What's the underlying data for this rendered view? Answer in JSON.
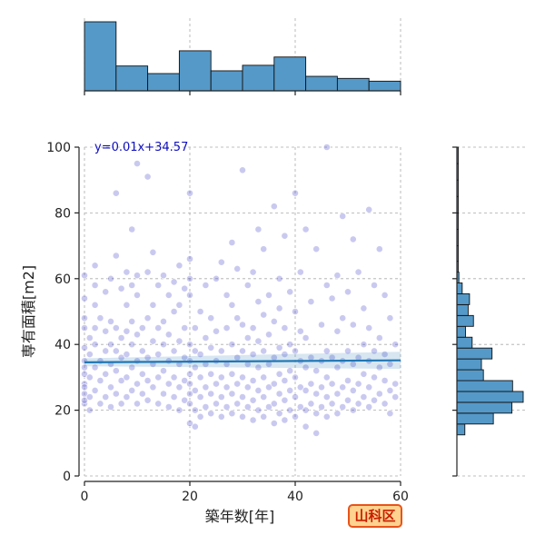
{
  "chart_data": {
    "type": "scatter",
    "xlabel": "築年数[年]",
    "ylabel": "専有面積[m2]",
    "xlim": [
      0,
      60
    ],
    "ylim": [
      0,
      100
    ],
    "xticks": [
      "0",
      "20",
      "40",
      "60"
    ],
    "yticks": [
      "0",
      "20",
      "40",
      "60",
      "80",
      "100"
    ],
    "grid": true,
    "annotation": "y=0.01x+34.57",
    "regression": {
      "slope": 0.01,
      "intercept": 34.57
    },
    "badge": "山科区",
    "colors": {
      "points": "#3d3dc8",
      "regression": "#1f77b4",
      "hist_fill": "#5599c8",
      "hist_edge": "#111111",
      "grid": "#aaaaaa",
      "badge_border": "#e8541a",
      "badge_fill": "#ffd28f",
      "badge_text": "#c81e00"
    },
    "x_histogram": {
      "bin_edges": [
        0,
        6,
        12,
        18,
        24,
        30,
        36,
        42,
        48,
        54,
        60
      ],
      "relative_heights": [
        1.0,
        0.36,
        0.25,
        0.58,
        0.29,
        0.37,
        0.49,
        0.21,
        0.18,
        0.14
      ]
    },
    "y_histogram": {
      "bin_edges": [
        12.5,
        15.8,
        19.1,
        22.4,
        25.7,
        29.0,
        32.3,
        35.6,
        38.9,
        42.2,
        45.5,
        48.8,
        52.1,
        55.4,
        58.7,
        62.0,
        65.3,
        70.0,
        75.0,
        80.0,
        85.0,
        90.0,
        95.0,
        100.0
      ],
      "relative_heights": [
        0.12,
        0.55,
        0.83,
        1.0,
        0.84,
        0.4,
        0.37,
        0.53,
        0.23,
        0.13,
        0.25,
        0.17,
        0.19,
        0.08,
        0.03,
        0.02,
        0.02,
        0.02,
        0.02,
        0.02,
        0.02,
        0.02,
        0.02
      ]
    },
    "points": [
      [
        0,
        22
      ],
      [
        0,
        25
      ],
      [
        0,
        28
      ],
      [
        0,
        31
      ],
      [
        0,
        35
      ],
      [
        0,
        39
      ],
      [
        0,
        45
      ],
      [
        0,
        48
      ],
      [
        0,
        54
      ],
      [
        0,
        61
      ],
      [
        0,
        23
      ],
      [
        0,
        27
      ],
      [
        0,
        33
      ],
      [
        1,
        24
      ],
      [
        1,
        30
      ],
      [
        1,
        37
      ],
      [
        1,
        42
      ],
      [
        1,
        20
      ],
      [
        2,
        26
      ],
      [
        2,
        33
      ],
      [
        2,
        40
      ],
      [
        2,
        45
      ],
      [
        2,
        52
      ],
      [
        2,
        58
      ],
      [
        2,
        64
      ],
      [
        3,
        22
      ],
      [
        3,
        29
      ],
      [
        3,
        35
      ],
      [
        3,
        48
      ],
      [
        4,
        24
      ],
      [
        4,
        31
      ],
      [
        4,
        38
      ],
      [
        4,
        44
      ],
      [
        4,
        56
      ],
      [
        5,
        21
      ],
      [
        5,
        27
      ],
      [
        5,
        34
      ],
      [
        5,
        40
      ],
      [
        5,
        47
      ],
      [
        5,
        60
      ],
      [
        6,
        25
      ],
      [
        6,
        32
      ],
      [
        6,
        38
      ],
      [
        6,
        45
      ],
      [
        6,
        67
      ],
      [
        6,
        86
      ],
      [
        7,
        22
      ],
      [
        7,
        29
      ],
      [
        7,
        36
      ],
      [
        7,
        42
      ],
      [
        7,
        57
      ],
      [
        8,
        24
      ],
      [
        8,
        30
      ],
      [
        8,
        37
      ],
      [
        8,
        44
      ],
      [
        8,
        52
      ],
      [
        8,
        62
      ],
      [
        9,
        26
      ],
      [
        9,
        33
      ],
      [
        9,
        40
      ],
      [
        9,
        47
      ],
      [
        9,
        58
      ],
      [
        9,
        75
      ],
      [
        10,
        22
      ],
      [
        10,
        28
      ],
      [
        10,
        35
      ],
      [
        10,
        43
      ],
      [
        10,
        55
      ],
      [
        10,
        61
      ],
      [
        10,
        95
      ],
      [
        11,
        25
      ],
      [
        11,
        31
      ],
      [
        11,
        38
      ],
      [
        11,
        45
      ],
      [
        12,
        23
      ],
      [
        12,
        29
      ],
      [
        12,
        36
      ],
      [
        12,
        48
      ],
      [
        12,
        62
      ],
      [
        12,
        91
      ],
      [
        13,
        27
      ],
      [
        13,
        34
      ],
      [
        13,
        41
      ],
      [
        13,
        52
      ],
      [
        13,
        68
      ],
      [
        14,
        22
      ],
      [
        14,
        30
      ],
      [
        14,
        37
      ],
      [
        14,
        45
      ],
      [
        14,
        58
      ],
      [
        15,
        25
      ],
      [
        15,
        32
      ],
      [
        15,
        40
      ],
      [
        15,
        47
      ],
      [
        15,
        61
      ],
      [
        16,
        21
      ],
      [
        16,
        28
      ],
      [
        16,
        35
      ],
      [
        16,
        43
      ],
      [
        16,
        55
      ],
      [
        17,
        24
      ],
      [
        17,
        30
      ],
      [
        17,
        38
      ],
      [
        17,
        50
      ],
      [
        17,
        59
      ],
      [
        18,
        20
      ],
      [
        18,
        27
      ],
      [
        18,
        34
      ],
      [
        18,
        41
      ],
      [
        18,
        52
      ],
      [
        18,
        64
      ],
      [
        19,
        23
      ],
      [
        19,
        29
      ],
      [
        19,
        36
      ],
      [
        19,
        45
      ],
      [
        19,
        57
      ],
      [
        20,
        16
      ],
      [
        20,
        22
      ],
      [
        20,
        28
      ],
      [
        20,
        35
      ],
      [
        20,
        40
      ],
      [
        20,
        55
      ],
      [
        20,
        60
      ],
      [
        20,
        66
      ],
      [
        20,
        86
      ],
      [
        20,
        31
      ],
      [
        20,
        25
      ],
      [
        21,
        15
      ],
      [
        21,
        20
      ],
      [
        21,
        26
      ],
      [
        21,
        33
      ],
      [
        21,
        38
      ],
      [
        21,
        45
      ],
      [
        22,
        18
      ],
      [
        22,
        24
      ],
      [
        22,
        30
      ],
      [
        22,
        37
      ],
      [
        22,
        50
      ],
      [
        23,
        21
      ],
      [
        23,
        27
      ],
      [
        23,
        34
      ],
      [
        23,
        42
      ],
      [
        23,
        58
      ],
      [
        24,
        19
      ],
      [
        24,
        25
      ],
      [
        24,
        31
      ],
      [
        24,
        39
      ],
      [
        24,
        48
      ],
      [
        25,
        22
      ],
      [
        25,
        28
      ],
      [
        25,
        35
      ],
      [
        25,
        44
      ],
      [
        25,
        60
      ],
      [
        26,
        18
      ],
      [
        26,
        24
      ],
      [
        26,
        30
      ],
      [
        26,
        38
      ],
      [
        26,
        65
      ],
      [
        27,
        21
      ],
      [
        27,
        27
      ],
      [
        27,
        34
      ],
      [
        27,
        45
      ],
      [
        27,
        55
      ],
      [
        28,
        19
      ],
      [
        28,
        25
      ],
      [
        28,
        31
      ],
      [
        28,
        40
      ],
      [
        28,
        52
      ],
      [
        28,
        71
      ],
      [
        29,
        22
      ],
      [
        29,
        28
      ],
      [
        29,
        36
      ],
      [
        29,
        48
      ],
      [
        29,
        63
      ],
      [
        30,
        18
      ],
      [
        30,
        24
      ],
      [
        30,
        30
      ],
      [
        30,
        38
      ],
      [
        30,
        46
      ],
      [
        30,
        93
      ],
      [
        31,
        21
      ],
      [
        31,
        27
      ],
      [
        31,
        34
      ],
      [
        31,
        42
      ],
      [
        31,
        58
      ],
      [
        32,
        17
      ],
      [
        32,
        23
      ],
      [
        32,
        29
      ],
      [
        32,
        37
      ],
      [
        32,
        45
      ],
      [
        32,
        62
      ],
      [
        33,
        20
      ],
      [
        33,
        26
      ],
      [
        33,
        33
      ],
      [
        33,
        41
      ],
      [
        33,
        53
      ],
      [
        33,
        75
      ],
      [
        34,
        18
      ],
      [
        34,
        24
      ],
      [
        34,
        30
      ],
      [
        34,
        38
      ],
      [
        34,
        49
      ],
      [
        34,
        69
      ],
      [
        35,
        21
      ],
      [
        35,
        27
      ],
      [
        35,
        34
      ],
      [
        35,
        43
      ],
      [
        35,
        55
      ],
      [
        36,
        16
      ],
      [
        36,
        22
      ],
      [
        36,
        28
      ],
      [
        36,
        36
      ],
      [
        36,
        47
      ],
      [
        36,
        82
      ],
      [
        37,
        19
      ],
      [
        37,
        25
      ],
      [
        37,
        31
      ],
      [
        37,
        39
      ],
      [
        37,
        51
      ],
      [
        37,
        60
      ],
      [
        38,
        17
      ],
      [
        38,
        23
      ],
      [
        38,
        29
      ],
      [
        38,
        37
      ],
      [
        38,
        45
      ],
      [
        38,
        73
      ],
      [
        39,
        20
      ],
      [
        39,
        26
      ],
      [
        39,
        32
      ],
      [
        39,
        40
      ],
      [
        39,
        56
      ],
      [
        40,
        18
      ],
      [
        40,
        24
      ],
      [
        40,
        30
      ],
      [
        40,
        38
      ],
      [
        40,
        50
      ],
      [
        40,
        86
      ],
      [
        41,
        21
      ],
      [
        41,
        27
      ],
      [
        41,
        35
      ],
      [
        41,
        44
      ],
      [
        41,
        62
      ],
      [
        42,
        15
      ],
      [
        42,
        20
      ],
      [
        42,
        26
      ],
      [
        42,
        33
      ],
      [
        42,
        42
      ],
      [
        42,
        75
      ],
      [
        43,
        22
      ],
      [
        43,
        28
      ],
      [
        43,
        36
      ],
      [
        43,
        53
      ],
      [
        44,
        13
      ],
      [
        44,
        19
      ],
      [
        44,
        25
      ],
      [
        44,
        32
      ],
      [
        44,
        69
      ],
      [
        45,
        21
      ],
      [
        45,
        27
      ],
      [
        45,
        35
      ],
      [
        45,
        46
      ],
      [
        46,
        18
      ],
      [
        46,
        24
      ],
      [
        46,
        30
      ],
      [
        46,
        38
      ],
      [
        46,
        58
      ],
      [
        46,
        100
      ],
      [
        47,
        22
      ],
      [
        47,
        28
      ],
      [
        47,
        36
      ],
      [
        47,
        54
      ],
      [
        48,
        19
      ],
      [
        48,
        25
      ],
      [
        48,
        33
      ],
      [
        48,
        44
      ],
      [
        48,
        61
      ],
      [
        49,
        21
      ],
      [
        49,
        27
      ],
      [
        49,
        35
      ],
      [
        49,
        48
      ],
      [
        49,
        79
      ],
      [
        50,
        23
      ],
      [
        50,
        29
      ],
      [
        50,
        38
      ],
      [
        50,
        56
      ],
      [
        51,
        20
      ],
      [
        51,
        26
      ],
      [
        51,
        34
      ],
      [
        51,
        46
      ],
      [
        51,
        72
      ],
      [
        52,
        22
      ],
      [
        52,
        28
      ],
      [
        52,
        36
      ],
      [
        52,
        62
      ],
      [
        53,
        24
      ],
      [
        53,
        31
      ],
      [
        53,
        40
      ],
      [
        53,
        51
      ],
      [
        54,
        21
      ],
      [
        54,
        27
      ],
      [
        54,
        35
      ],
      [
        54,
        45
      ],
      [
        54,
        81
      ],
      [
        55,
        23
      ],
      [
        55,
        30
      ],
      [
        55,
        38
      ],
      [
        55,
        58
      ],
      [
        56,
        25
      ],
      [
        56,
        33
      ],
      [
        56,
        42
      ],
      [
        56,
        69
      ],
      [
        57,
        22
      ],
      [
        57,
        29
      ],
      [
        57,
        37
      ],
      [
        57,
        55
      ],
      [
        58,
        19
      ],
      [
        58,
        26
      ],
      [
        58,
        34
      ],
      [
        58,
        48
      ],
      [
        59,
        24
      ],
      [
        59,
        28
      ],
      [
        59,
        40
      ]
    ]
  }
}
